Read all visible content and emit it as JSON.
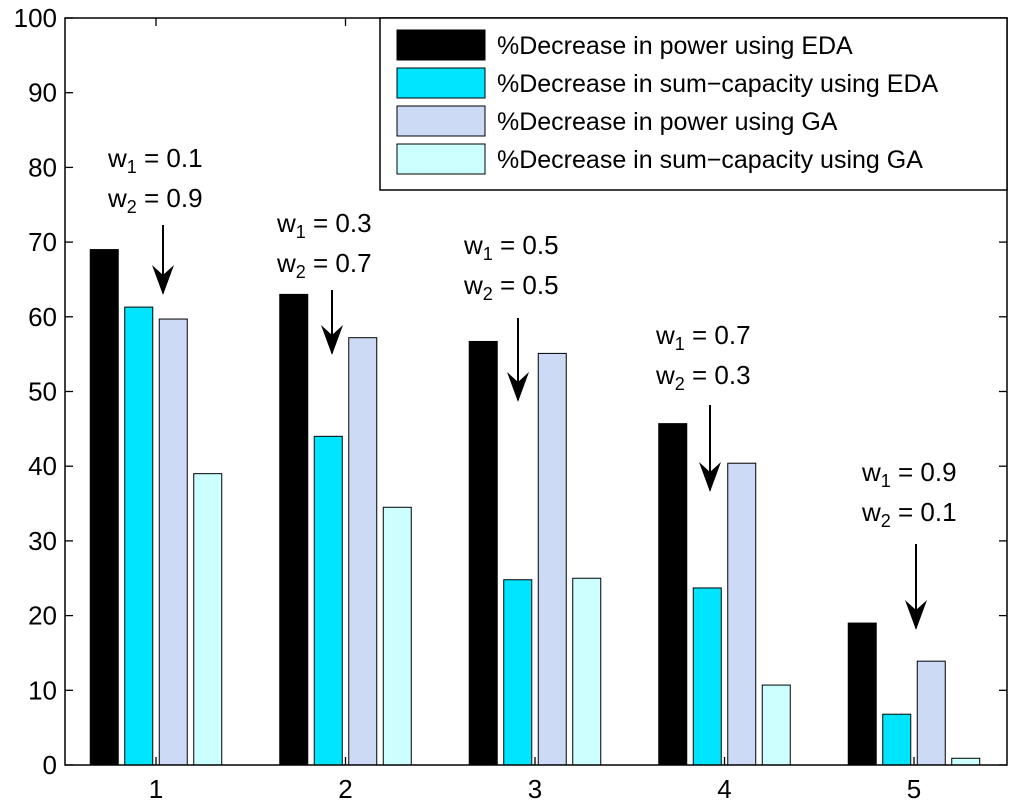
{
  "chart_data": {
    "type": "bar",
    "title": "",
    "xlabel": "",
    "ylabel": "",
    "categories": [
      "1",
      "2",
      "3",
      "4",
      "5"
    ],
    "ylim": [
      0,
      100
    ],
    "yticks": [
      "0",
      "10",
      "20",
      "30",
      "40",
      "50",
      "60",
      "70",
      "80",
      "90",
      "100"
    ],
    "grid": false,
    "legend_position": "top-right",
    "series": [
      {
        "name": "%Decrease in power using EDA",
        "color": "#000000",
        "values": [
          69,
          63,
          56.7,
          45.7,
          19
        ]
      },
      {
        "name": "%Decrease in sum−capacity using EDA",
        "color": "#00e5ff",
        "values": [
          61.3,
          44,
          24.8,
          23.7,
          6.8
        ]
      },
      {
        "name": "%Decrease in power using GA",
        "color": "#ccdaf5",
        "values": [
          59.7,
          57.2,
          55.1,
          40.4,
          13.9
        ]
      },
      {
        "name": "%Decrease in sum−capacity using GA",
        "color": "#ccffff",
        "values": [
          39,
          34.5,
          25,
          10.7,
          0.9
        ]
      }
    ],
    "annotations": [
      {
        "category": "1",
        "w1_prefix": "w",
        "w1_sub": "1",
        "w1_value": " = 0.1",
        "w2_prefix": "w",
        "w2_sub": "2",
        "w2_value": " = 0.9"
      },
      {
        "category": "2",
        "w1_prefix": "w",
        "w1_sub": "1",
        "w1_value": " = 0.3",
        "w2_prefix": "w",
        "w2_sub": "2",
        "w2_value": " = 0.7"
      },
      {
        "category": "3",
        "w1_prefix": "w",
        "w1_sub": "1",
        "w1_value": " = 0.5",
        "w2_prefix": "w",
        "w2_sub": "2",
        "w2_value": " = 0.5"
      },
      {
        "category": "4",
        "w1_prefix": "w",
        "w1_sub": "1",
        "w1_value": " = 0.7",
        "w2_prefix": "w",
        "w2_sub": "2",
        "w2_value": " = 0.3"
      },
      {
        "category": "5",
        "w1_prefix": "w",
        "w1_sub": "1",
        "w1_value": " = 0.9",
        "w2_prefix": "w",
        "w2_sub": "2",
        "w2_value": " = 0.1"
      }
    ]
  }
}
